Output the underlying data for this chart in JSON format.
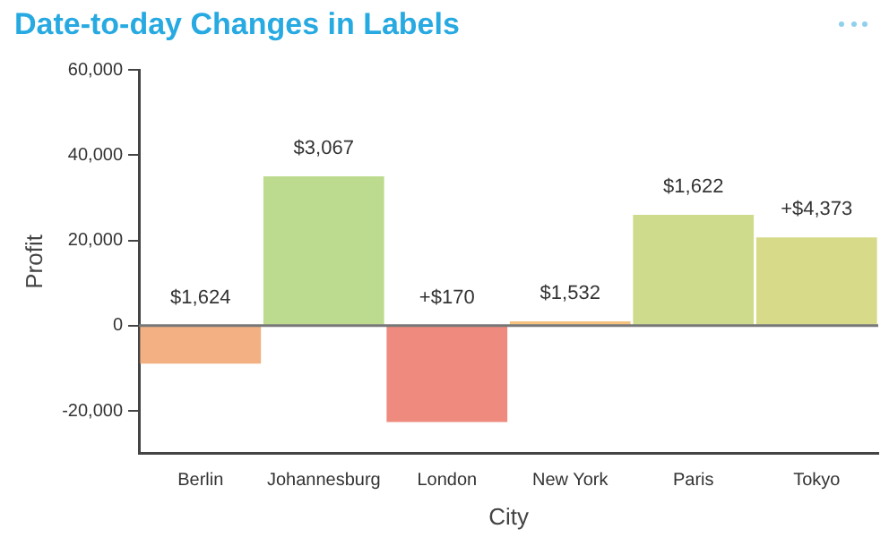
{
  "chart_data": {
    "type": "bar",
    "title": "Date-to-day Changes in Labels",
    "xlabel": "City",
    "ylabel": "Profit",
    "categories": [
      "Berlin",
      "Johannesburg",
      "London",
      "New York",
      "Paris",
      "Tokyo"
    ],
    "values": [
      -8900,
      35000,
      -22600,
      1000,
      26000,
      20700
    ],
    "colors": [
      "#f3b183",
      "#bcdb8e",
      "#ee8a7e",
      "#f5c27f",
      "#cfdb8c",
      "#d7da88"
    ],
    "annotations": [
      {
        "text": "$1,624",
        "x": "Berlin",
        "y": 0
      },
      {
        "text": "$3,067",
        "x": "Johannesburg",
        "y": 35000
      },
      {
        "text": "+$170",
        "x": "London",
        "y": 0
      },
      {
        "text": "$1,532",
        "x": "New York",
        "y": 1000
      },
      {
        "text": "$1,622",
        "x": "Paris",
        "y": 26000
      },
      {
        "text": "+$4,373",
        "x": "Tokyo",
        "y": 20700
      }
    ],
    "ylim": [
      -30000,
      60000
    ],
    "yticks": [
      {
        "value": -20000,
        "label": "-20,000"
      },
      0,
      {
        "value": 20000,
        "label": "20,000"
      },
      {
        "value": 40000,
        "label": "40,000"
      },
      {
        "value": 60000,
        "label": "60,000"
      }
    ],
    "ref_lines": [
      {
        "axis": "y",
        "value": 0,
        "color": "#777777"
      }
    ],
    "grid": false,
    "legend": false
  }
}
